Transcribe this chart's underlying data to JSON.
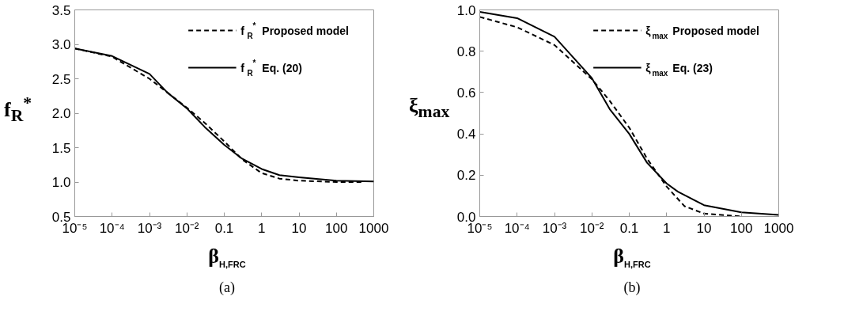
{
  "chart_data": [
    {
      "type": "line",
      "xlabel": "β$_{H,FRC}$",
      "ylabel": "f$_{R}$$^{*}$",
      "log": "x",
      "grid": false,
      "legend": "top right",
      "xlim": [
        1e-05,
        1000
      ],
      "xticks": [
        {
          "value": 1e-05,
          "label": "10⁻⁵"
        },
        {
          "value": 0.0001,
          "label": "10⁻⁴"
        },
        {
          "value": 0.001,
          "label": "10⁻³"
        },
        {
          "value": 0.01,
          "label": "10⁻²"
        },
        0.1,
        1,
        10,
        100,
        1000
      ],
      "ylim": [
        0.5,
        3.5
      ],
      "yticks": [
        {
          "value": 0.5,
          "label": "0.5"
        },
        {
          "value": 1,
          "label": "1.0"
        },
        {
          "value": 1.5,
          "label": "1.5"
        },
        {
          "value": 2,
          "label": "2.0"
        },
        {
          "value": 2.5,
          "label": "2.5"
        },
        {
          "value": 3,
          "label": "3.0"
        },
        {
          "value": 3.5,
          "label": "3.5"
        }
      ],
      "annotations": [
        "(a)"
      ],
      "series": [
        {
          "name": "f$_{R}$$^{*}$ Proposed model",
          "color": "#000000",
          "line_style": "dashed",
          "x": [
            1e-05,
            0.0001,
            0.001,
            0.003,
            0.01,
            0.03,
            0.1,
            0.3,
            1,
            3,
            10,
            100,
            500
          ],
          "values": [
            2.94,
            2.82,
            2.5,
            2.3,
            2.08,
            1.86,
            1.59,
            1.33,
            1.13,
            1.05,
            1.02,
            1.0,
            1.0
          ]
        },
        {
          "name": "f$_{R}$$^{*}$ Eq. (20)",
          "color": "#000000",
          "line_style": "solid",
          "x": [
            1e-05,
            0.0001,
            0.001,
            0.003,
            0.01,
            0.03,
            0.1,
            0.3,
            1,
            3,
            10,
            100,
            1000
          ],
          "values": [
            2.94,
            2.83,
            2.57,
            2.3,
            2.07,
            1.8,
            1.54,
            1.34,
            1.19,
            1.1,
            1.07,
            1.02,
            1.01
          ]
        }
      ]
    },
    {
      "type": "line",
      "xlabel": "β$_{H,FRC}$",
      "ylabel": "ξ$_{max}$",
      "log": "x",
      "grid": false,
      "legend": "top right",
      "xlim": [
        1e-05,
        1000
      ],
      "xticks": [
        {
          "value": 1e-05,
          "label": "10⁻⁵"
        },
        {
          "value": 0.0001,
          "label": "10⁻⁴"
        },
        {
          "value": 0.001,
          "label": "10⁻³"
        },
        {
          "value": 0.01,
          "label": "10⁻²"
        },
        0.1,
        1,
        10,
        100,
        1000
      ],
      "ylim": [
        0,
        1
      ],
      "yticks": [
        {
          "value": 0,
          "label": "0.0"
        },
        {
          "value": 0.2,
          "label": "0.2"
        },
        {
          "value": 0.4,
          "label": "0.4"
        },
        {
          "value": 0.6,
          "label": "0.6"
        },
        {
          "value": 0.8,
          "label": "0.8"
        },
        {
          "value": 1,
          "label": "1.0"
        }
      ],
      "annotations": [
        "(b)"
      ],
      "series": [
        {
          "name": "ξ$_{max}$ Proposed model",
          "color": "#000000",
          "line_style": "dashed",
          "x": [
            1e-05,
            0.0001,
            0.001,
            0.01,
            0.03,
            0.1,
            0.3,
            1,
            3,
            10,
            100
          ],
          "values": [
            0.966,
            0.916,
            0.83,
            0.665,
            0.56,
            0.43,
            0.28,
            0.145,
            0.05,
            0.014,
            0.0
          ]
        },
        {
          "name": "ξ$_{max}$ Eq. (23)",
          "color": "#000000",
          "line_style": "solid",
          "x": [
            1e-05,
            0.0001,
            0.001,
            0.01,
            0.03,
            0.1,
            0.3,
            1,
            2,
            10,
            100,
            1000
          ],
          "values": [
            0.99,
            0.96,
            0.87,
            0.67,
            0.52,
            0.4,
            0.26,
            0.16,
            0.12,
            0.055,
            0.02,
            0.008
          ]
        }
      ]
    }
  ]
}
